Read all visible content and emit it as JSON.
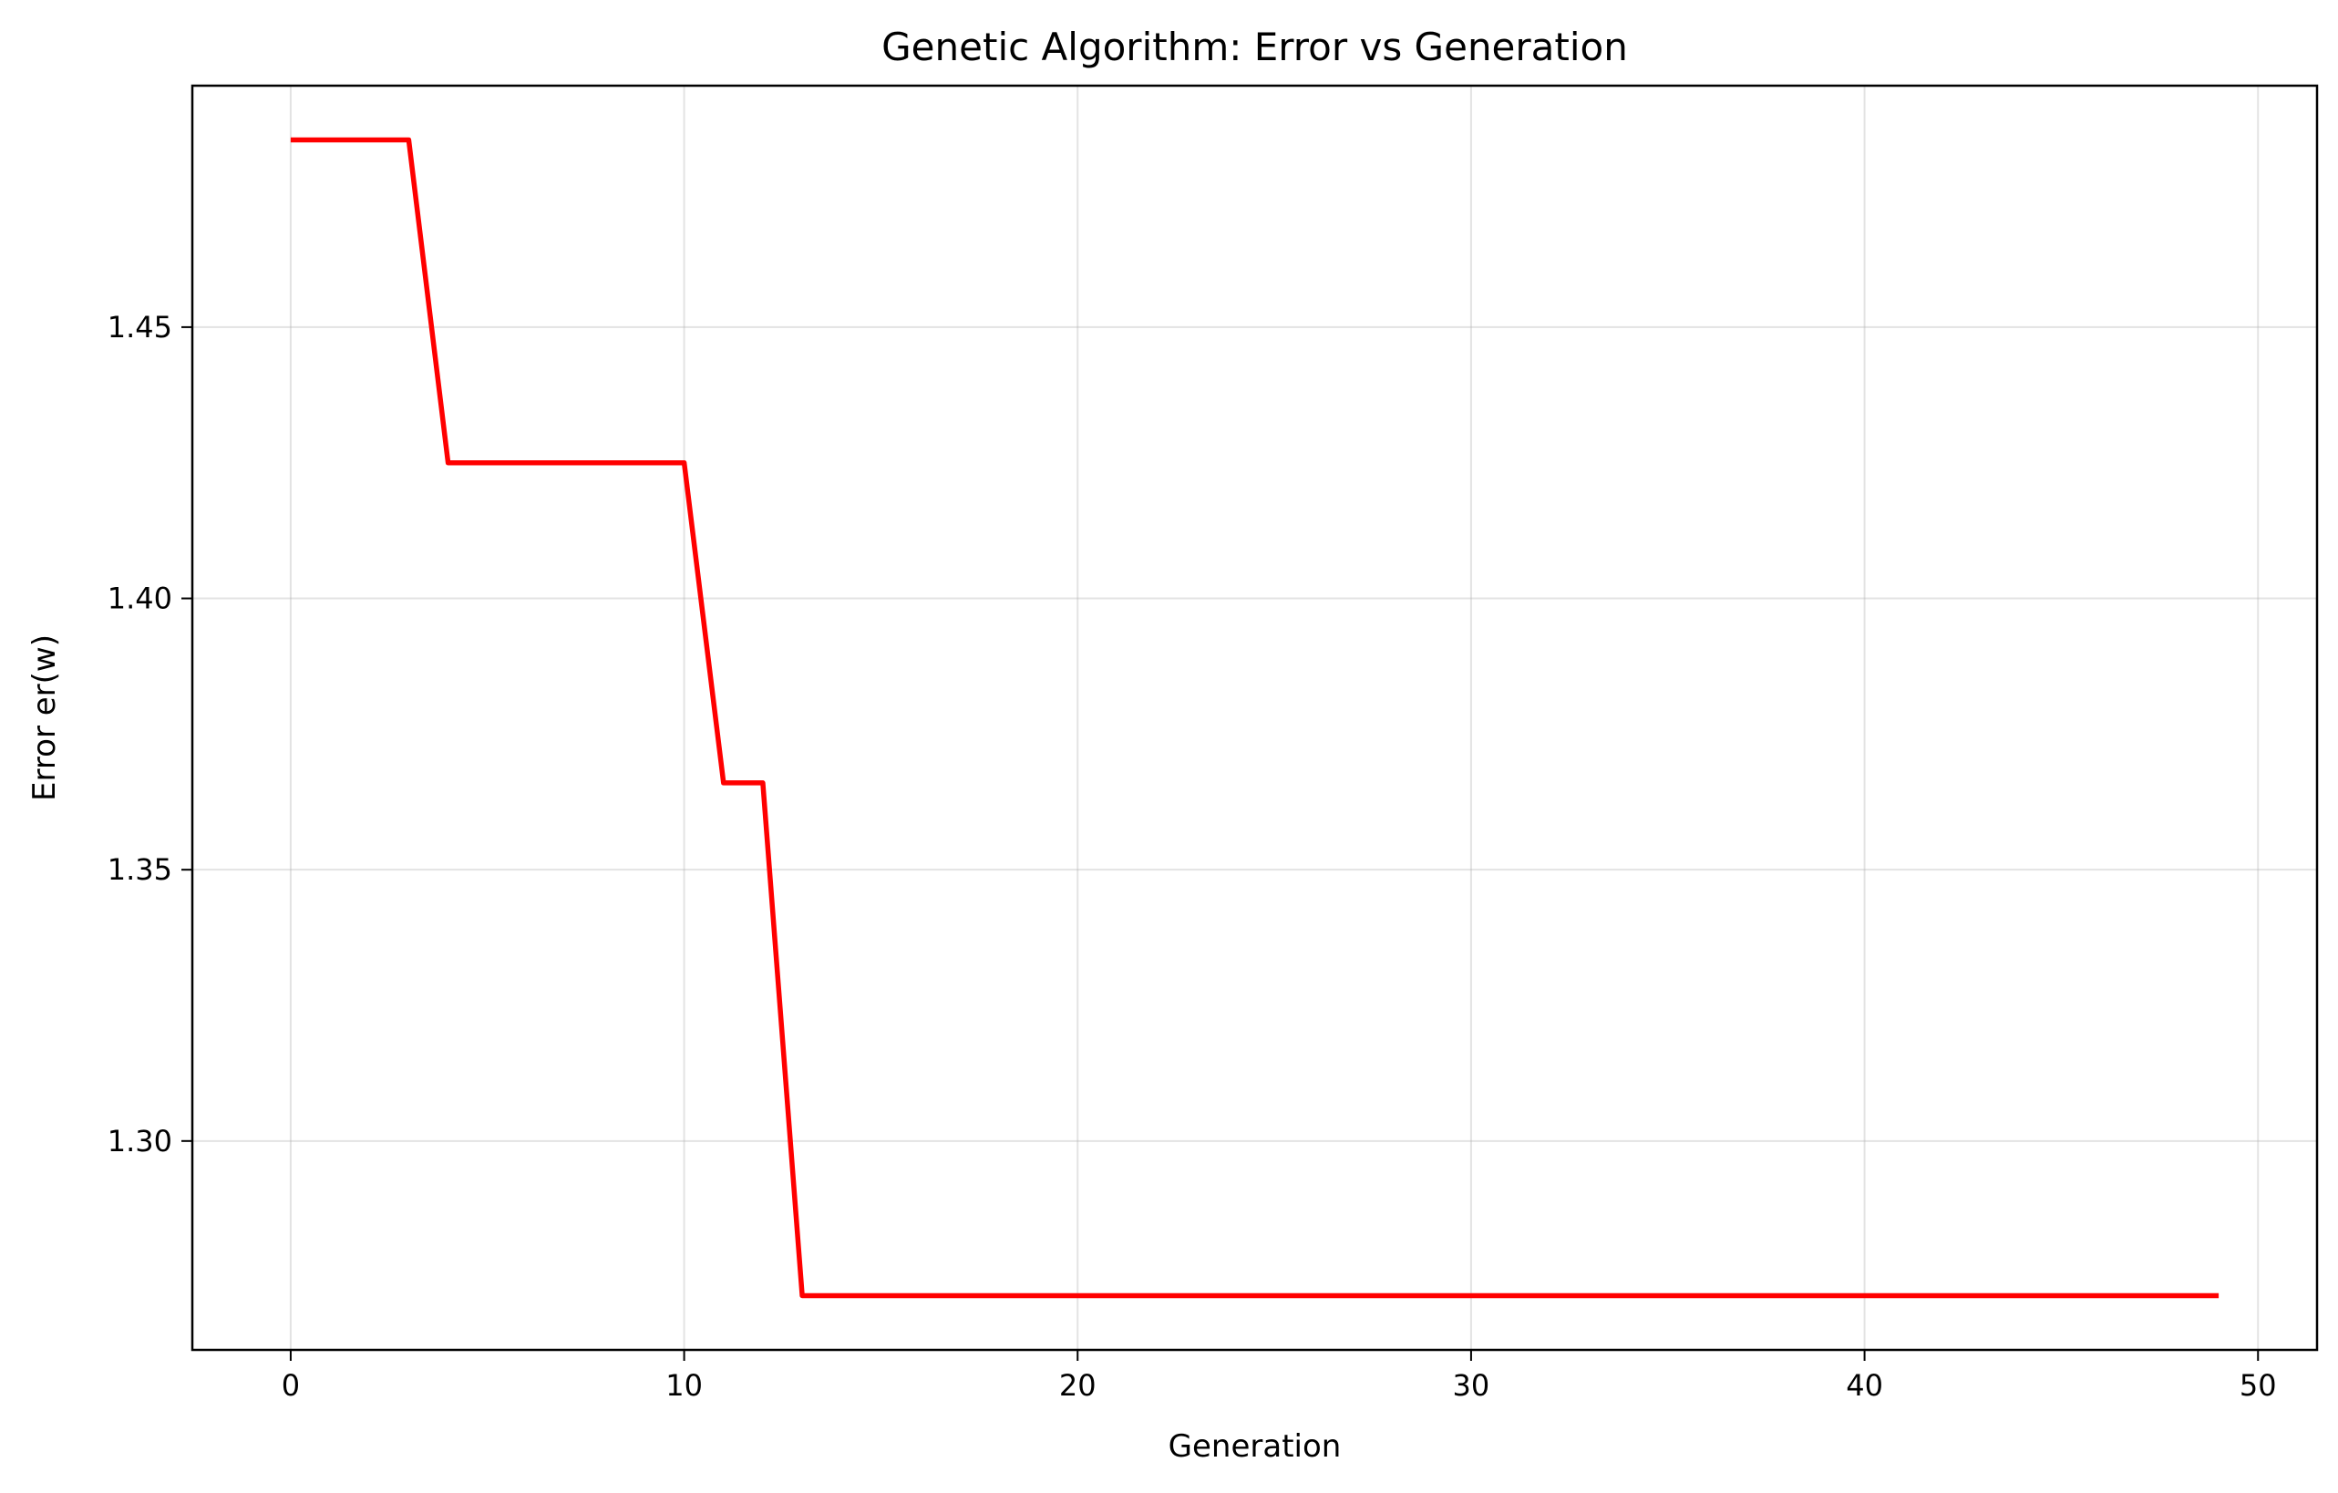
{
  "chart_data": {
    "type": "line",
    "title": "Genetic Algorithm: Error vs Generation",
    "xlabel": "Generation",
    "ylabel": "Error er(w)",
    "xlim": [
      -2.5,
      51.5
    ],
    "ylim": [
      1.2615,
      1.4945
    ],
    "xticks": [
      0,
      10,
      20,
      30,
      40,
      50
    ],
    "yticks": [
      1.3,
      1.35,
      1.4,
      1.45
    ],
    "grid": true,
    "series": [
      {
        "color": "#ff0000",
        "x": [
          0,
          1,
          2,
          3,
          4,
          5,
          6,
          7,
          8,
          9,
          10,
          11,
          12,
          13,
          14,
          15,
          16,
          17,
          18,
          19,
          20,
          21,
          22,
          23,
          24,
          25,
          26,
          27,
          28,
          29,
          30,
          31,
          32,
          33,
          34,
          35,
          36,
          37,
          38,
          39,
          40,
          41,
          42,
          43,
          44,
          45,
          46,
          47,
          48,
          49
        ],
        "y": [
          1.4845,
          1.4845,
          1.4845,
          1.4845,
          1.425,
          1.425,
          1.425,
          1.425,
          1.425,
          1.425,
          1.425,
          1.366,
          1.366,
          1.2715,
          1.2715,
          1.2715,
          1.2715,
          1.2715,
          1.2715,
          1.2715,
          1.2715,
          1.2715,
          1.2715,
          1.2715,
          1.2715,
          1.2715,
          1.2715,
          1.2715,
          1.2715,
          1.2715,
          1.2715,
          1.2715,
          1.2715,
          1.2715,
          1.2715,
          1.2715,
          1.2715,
          1.2715,
          1.2715,
          1.2715,
          1.2715,
          1.2715,
          1.2715,
          1.2715,
          1.2715,
          1.2715,
          1.2715,
          1.2715,
          1.2715,
          1.2715
        ]
      }
    ]
  }
}
